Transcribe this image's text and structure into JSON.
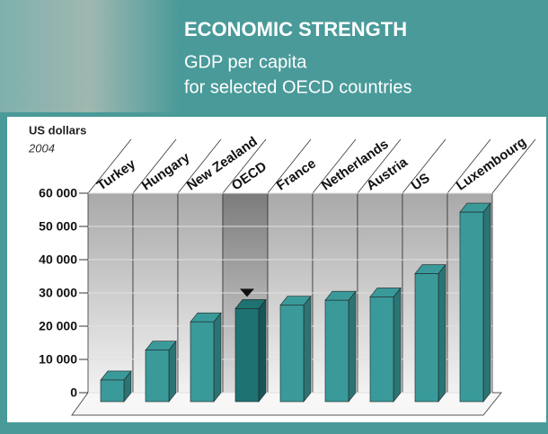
{
  "chart_data": {
    "type": "bar3d",
    "title": "ECONOMIC STRENGTH",
    "subtitle": [
      "GDP per capita",
      "for selected OECD countries"
    ],
    "y_label": "US dollars",
    "note": "2004",
    "categories": [
      "Turkey",
      "Hungary",
      "New Zealand",
      "OECD",
      "France",
      "Netherlands",
      "Austria",
      "US",
      "Luxembourg"
    ],
    "values": [
      6500,
      15500,
      24000,
      28000,
      29000,
      30500,
      31500,
      38500,
      57000
    ],
    "color": "#3a9a9a",
    "highlight_category": "OECD",
    "highlight_color": "#1e7272",
    "ylim": [
      0,
      60000
    ],
    "yticks": [
      0,
      {
        "value": 10000,
        "label": "10 000"
      },
      {
        "value": 20000,
        "label": "20 000"
      },
      {
        "value": 30000,
        "label": "30 000"
      },
      {
        "value": 40000,
        "label": "40 000"
      },
      {
        "value": 50000,
        "label": "50 000"
      },
      {
        "value": 60000,
        "label": "60 000"
      }
    ],
    "grid": true
  }
}
